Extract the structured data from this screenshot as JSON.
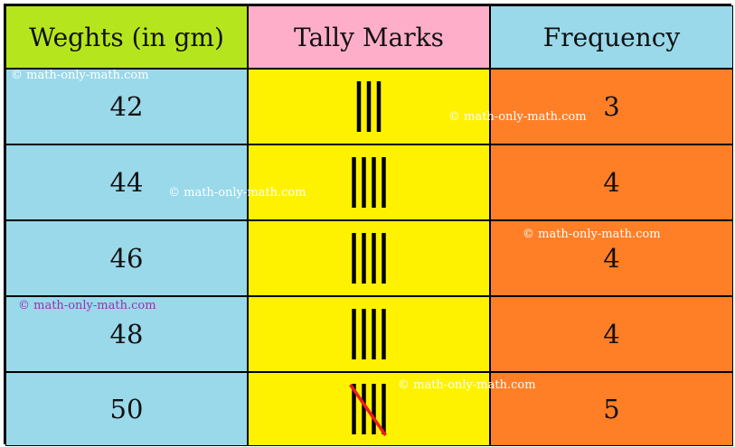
{
  "headers": {
    "weights": "Weghts (in gm)",
    "tally": "Tally Marks",
    "frequency": "Frequency"
  },
  "rows": [
    {
      "weight": "42",
      "tally": 3,
      "frequency": "3"
    },
    {
      "weight": "44",
      "tally": 4,
      "frequency": "4"
    },
    {
      "weight": "46",
      "tally": 4,
      "frequency": "4"
    },
    {
      "weight": "48",
      "tally": 4,
      "frequency": "4"
    },
    {
      "weight": "50",
      "tally": 5,
      "frequency": "5"
    }
  ],
  "colors": {
    "weights_header": "#b5e61d",
    "tally_header": "#ffaec9",
    "frequency_header": "#99d9ea",
    "weights_cells": "#99d9ea",
    "tally_cells": "#fff200",
    "frequency_cells": "#ff7f27",
    "tally_mark": "#000000",
    "tally_strike": "#ed1c24"
  },
  "watermarks": [
    {
      "text": "© math-only-math.com",
      "color": "#ffffff"
    },
    {
      "text": "© math-only-math.com",
      "color": "#ffffff"
    },
    {
      "text": "© math-only-math.com",
      "color": "#ffffff"
    },
    {
      "text": "© math-only-math.com",
      "color": "#ffffff"
    },
    {
      "text": "© math-only-math.com",
      "color": "#9b30b3"
    },
    {
      "text": "© math-only-math.com",
      "color": "#ffffff"
    }
  ]
}
